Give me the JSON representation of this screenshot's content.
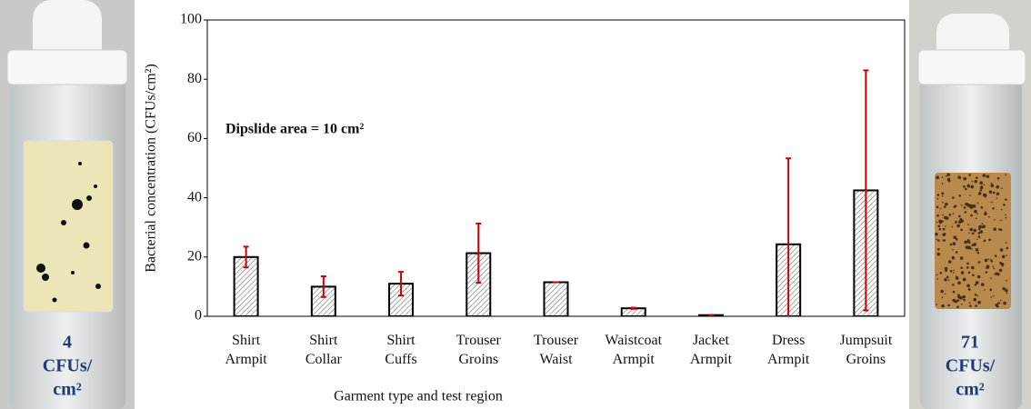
{
  "chart_data": {
    "type": "bar",
    "y_label": "Bacterial concentration (CFUs/cm²)",
    "x_label": "Garment type and test region",
    "annotation": "Dipslide area = 10 cm²",
    "categories": [
      "Shirt Armpit",
      "Shirt Collar",
      "Shirt Cuffs",
      "Trouser Groins",
      "Trouser Waist",
      "Waistcoat Armpit",
      "Jacket Armpit",
      "Dress Armpit",
      "Jumpsuit Groins"
    ],
    "values": [
      20,
      10,
      11,
      21.3,
      11.5,
      2.7,
      0.4,
      24.3,
      42.5
    ],
    "errors": [
      3.5,
      3.5,
      4,
      10,
      0,
      0.2,
      0,
      29,
      40.5
    ],
    "color": "#555555",
    "error_color": "#cc0000",
    "ylim": [
      0,
      100
    ],
    "yticks": [
      0,
      20,
      40,
      60,
      80,
      100
    ],
    "grid": false
  },
  "photos": {
    "left": [
      "4",
      "CFUs/",
      "cm²"
    ],
    "right": [
      "71",
      "CFUs/",
      "cm²"
    ]
  }
}
